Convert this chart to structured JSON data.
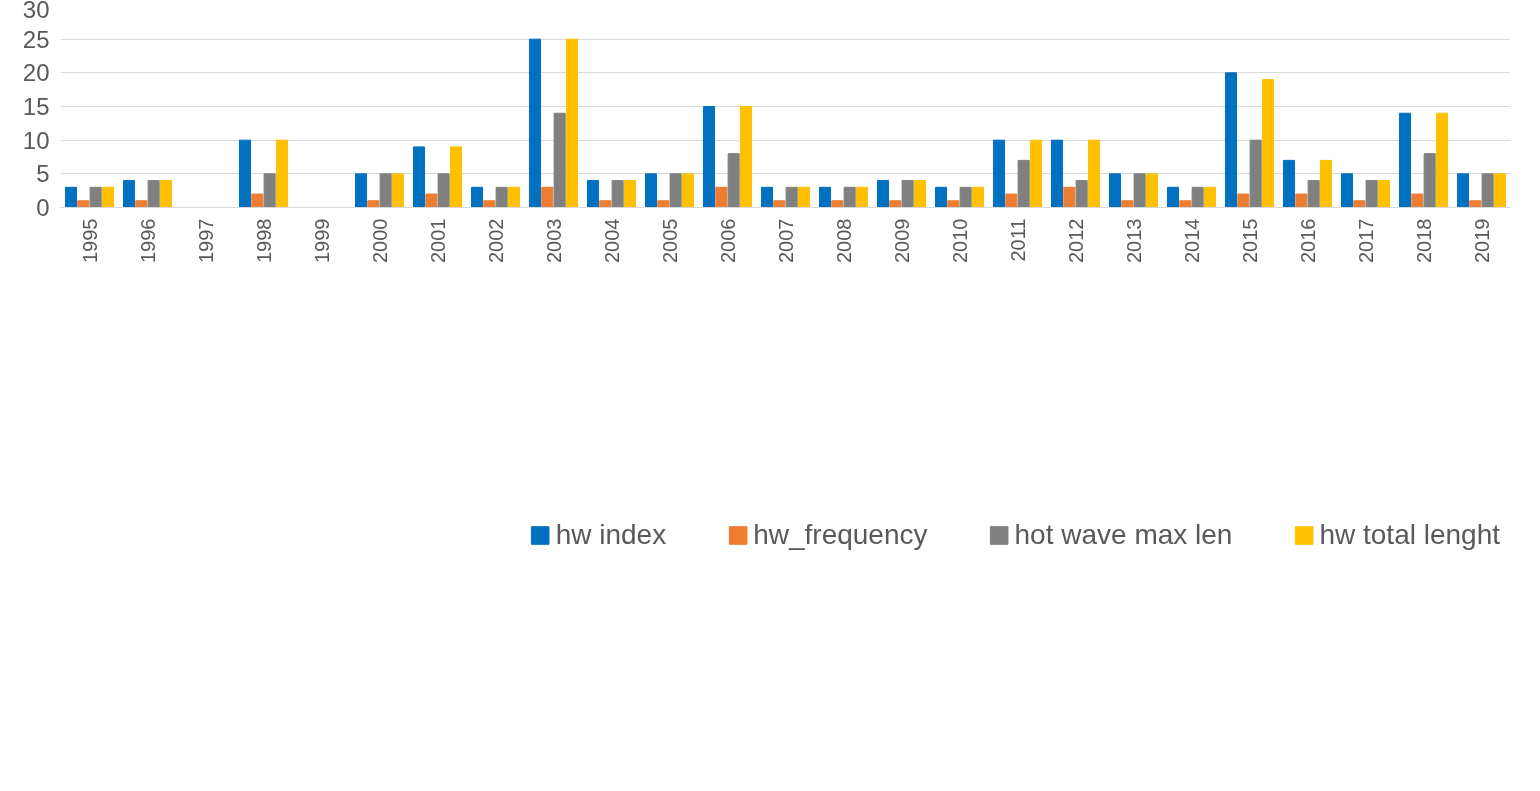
{
  "chart_data": {
    "type": "bar",
    "categories": [
      "1995",
      "1996",
      "1997",
      "1998",
      "1999",
      "2000",
      "2001",
      "2002",
      "2003",
      "2004",
      "2005",
      "2006",
      "2007",
      "2008",
      "2009",
      "2010",
      "2011",
      "2012",
      "2013",
      "2014",
      "2015",
      "2016",
      "2017",
      "2018",
      "2019"
    ],
    "series": [
      {
        "name": "hw index",
        "color": "#0070c0",
        "values": [
          3,
          4,
          0,
          10,
          0,
          5,
          9,
          3,
          25,
          4,
          5,
          15,
          3,
          3,
          4,
          3,
          10,
          10,
          5,
          3,
          20,
          7,
          5,
          14,
          5
        ]
      },
      {
        "name": "hw_frequency",
        "color": "#ed7d31",
        "values": [
          1,
          1,
          0,
          2,
          0,
          1,
          2,
          1,
          3,
          1,
          1,
          3,
          1,
          1,
          1,
          1,
          2,
          3,
          1,
          1,
          2,
          2,
          1,
          2,
          1
        ]
      },
      {
        "name": "hot wave max len",
        "color": "#808080",
        "values": [
          3,
          4,
          0,
          5,
          0,
          5,
          5,
          3,
          14,
          4,
          5,
          8,
          3,
          3,
          4,
          3,
          7,
          4,
          5,
          3,
          10,
          4,
          4,
          8,
          5
        ]
      },
      {
        "name": "hw total lenght",
        "color": "#ffc000",
        "values": [
          3,
          4,
          0,
          10,
          0,
          5,
          9,
          3,
          25,
          4,
          5,
          15,
          3,
          3,
          4,
          3,
          10,
          10,
          5,
          3,
          19,
          7,
          4,
          14,
          5
        ]
      }
    ],
    "ylim": [
      0,
      30
    ],
    "yticks": [
      0,
      5,
      10,
      15,
      20,
      25,
      30
    ],
    "grid": "y",
    "legend": "bottom"
  }
}
